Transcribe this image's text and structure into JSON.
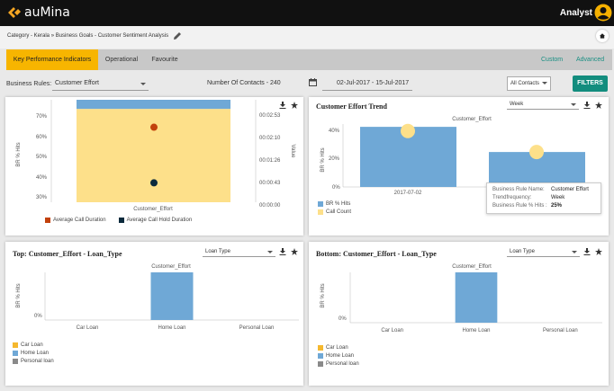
{
  "app": {
    "logo_text": "auMina",
    "user_name": "Analyst"
  },
  "breadcrumb": "Category - Kerala » Business Goals - Customer Sentiment Analysis",
  "tabs": [
    {
      "label": "Key Performance Indicators",
      "active": true
    },
    {
      "label": "Operational",
      "active": false
    },
    {
      "label": "Favourite",
      "active": false
    }
  ],
  "tab_links": {
    "custom": "Custom",
    "advanced": "Advanced"
  },
  "filters": {
    "business_rules_label": "Business Rules:",
    "business_rule_value": "Customer Effort",
    "contacts_text": "Number Of Contacts - 240",
    "date_range": "02-Jul-2017 - 15-Jul-2017",
    "contacts_select": "All Contacts",
    "filters_button": "FILTERS"
  },
  "panel1": {
    "y_left_label": "BR % Hits",
    "y_right_label": "Value",
    "x_tick": "Customer_Effort",
    "y_left_ticks": [
      "70%",
      "60%",
      "50%",
      "40%",
      "30%"
    ],
    "y_right_ticks": [
      "00:02:53",
      "00:02:10",
      "00:01:26",
      "00:00:43",
      "00:00:00"
    ],
    "legend": [
      {
        "label": "Average Call Duration",
        "color": "#c2410c"
      },
      {
        "label": "Average Call Hold Duration",
        "color": "#0b2a3c"
      }
    ]
  },
  "panel2": {
    "title": "Customer Effort Trend",
    "select": "Week",
    "series_caption": "Customer_Effort",
    "y_label": "BR % Hits",
    "y_ticks": [
      "40%",
      "20%",
      "0%"
    ],
    "x_tick": "2017-07-02",
    "legend": [
      {
        "label": "BR % Hits",
        "color": "#6fa8d6"
      },
      {
        "label": "Call Count",
        "color": "#fde08a"
      }
    ],
    "tooltip": {
      "rows": [
        {
          "k": "Business Rule Name:",
          "v": "Customer Effort"
        },
        {
          "k": "Trendfrequency:",
          "v": "Week"
        },
        {
          "k": "Business Rule % Hits :",
          "v": "25%"
        }
      ]
    }
  },
  "panel3": {
    "title": "Top: Customer_Effort - Loan_Type",
    "select": "Loan Type",
    "series_caption": "Customer_Effort",
    "y_label": "BR % Hits",
    "y_tick": "0%",
    "x_ticks": [
      "Car Loan",
      "Home Loan",
      "Personal Loan"
    ],
    "legend": [
      {
        "label": "Car Loan",
        "color": "#f5b82e"
      },
      {
        "label": "Home Loan",
        "color": "#6fa8d6"
      },
      {
        "label": "Personal loan",
        "color": "#8a8a8a"
      }
    ]
  },
  "panel4": {
    "title": "Bottom: Customer_Effort - Loan_Type",
    "select": "Loan Type",
    "series_caption": "Customer_Effort",
    "y_label": "BR % Hits",
    "y_tick": "0%",
    "x_ticks": [
      "Car Loan",
      "Home Loan",
      "Personal Loan"
    ],
    "legend": [
      {
        "label": "Car Loan",
        "color": "#f5b82e"
      },
      {
        "label": "Home Loan",
        "color": "#6fa8d6"
      },
      {
        "label": "Personal loan",
        "color": "#8a8a8a"
      }
    ]
  },
  "chart_data": [
    {
      "type": "bar",
      "categories": [
        "Customer_Effort"
      ],
      "series": [
        {
          "name": "BR % Hits",
          "values": [
            73
          ],
          "color": "#6fa8d6"
        },
        {
          "name": "Call Count",
          "values": [
            69
          ],
          "color": "#fde08a"
        }
      ],
      "points": [
        {
          "name": "Average Call Duration",
          "value": "00:02:33"
        },
        {
          "name": "Average Call Hold Duration",
          "value": "00:00:46"
        }
      ],
      "ylabel": "BR % Hits",
      "ylim": [
        28,
        73
      ]
    },
    {
      "type": "bar",
      "title": "Customer Effort Trend",
      "categories": [
        "2017-07-02",
        "2017-07-09"
      ],
      "series": [
        {
          "name": "BR % Hits",
          "values": [
            43,
            25
          ]
        },
        {
          "name": "Call Count",
          "values": [
            40,
            25
          ]
        }
      ],
      "ylabel": "BR % Hits",
      "ylim": [
        0,
        45
      ]
    },
    {
      "type": "bar",
      "title": "Top: Customer_Effort - Loan_Type",
      "categories": [
        "Car Loan",
        "Home Loan",
        "Personal Loan"
      ],
      "values": [
        0,
        100,
        0
      ],
      "ylabel": "BR % Hits"
    },
    {
      "type": "bar",
      "title": "Bottom: Customer_Effort - Loan_Type",
      "categories": [
        "Car Loan",
        "Home Loan",
        "Personal Loan"
      ],
      "values": [
        0,
        100,
        0
      ],
      "ylabel": "BR % Hits"
    }
  ]
}
